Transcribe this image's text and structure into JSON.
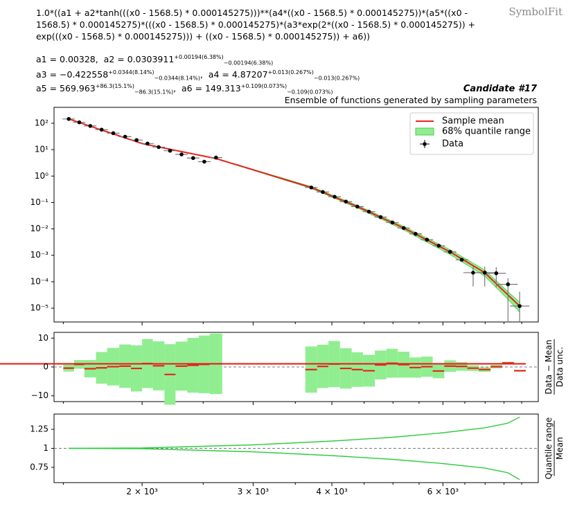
{
  "watermark": "SymbolFit",
  "formula": "1.0*((a1 + a2*tanh(((x0 - 1568.5) * 0.000145275)))**(a4*((x0 - 1568.5) * 0.000145275))*(a5*((x0 - 1568.5) * 0.000145275)*(((x0 - 1568.5) * 0.000145275)*(a3*exp(2*((x0 - 1568.5) * 0.000145275)) + exp(((x0 - 1568.5) * 0.000145275))) + ((x0 - 1568.5) * 0.000145275)) + a6))",
  "params": {
    "line1": {
      "a1": "a1 = 0.00328,",
      "a2": "a2 = 0.0303911",
      "a2_up": "+0.00194(6.38%)",
      "a2_dn": "−0.00194(6.38%)"
    },
    "line2": {
      "a3": "a3 = −0.422558",
      "a3_up": "+0.0344(8.14%)",
      "a3_dn": "−0.0344(8.14%)",
      "a4": "a4 = 4.87207",
      "a4_up": "+0.013(0.267%)",
      "a4_dn": "−0.013(0.267%)"
    },
    "line3": {
      "a5": "a5 = 569.963",
      "a5_up": "+86.3(15.1%)",
      "a5_dn": "−86.3(15.1%)",
      "a6": "a6 = 149.313",
      "a6_up": "+0.109(0.073%)",
      "a6_dn": "−0.109(0.073%)"
    }
  },
  "candidate": "Candidate #17",
  "subtitle": "Ensemble of functions generated by sampling parameters",
  "legend": {
    "mean": "Sample mean",
    "band": "68% quantile range",
    "data": "Data"
  },
  "colors": {
    "mean": "#e8231c",
    "band": "#90ee90",
    "green_line": "#2ecc40",
    "data": "#000000"
  },
  "chart_data": {
    "type": "line",
    "x_scale": "log",
    "xlim": [
      1450,
      8500
    ],
    "x_tick_labels": [
      "2 × 10³",
      "3 × 10³",
      "4 × 10³",
      "6 × 10³"
    ],
    "top": {
      "y_scale": "log",
      "ylim": [
        3e-06,
        400
      ],
      "y_tick_labels": [
        "10²",
        "10¹",
        "10⁰",
        "10⁻¹",
        "10⁻²",
        "10⁻³",
        "10⁻⁴",
        "10⁻⁵"
      ],
      "data_x": [
        1530,
        1590,
        1655,
        1725,
        1800,
        1880,
        1960,
        2040,
        2125,
        2215,
        2310,
        2410,
        2510,
        2620,
        3710,
        3870,
        4040,
        4210,
        4390,
        4580,
        4780,
        4990,
        5200,
        5430,
        5660,
        5910,
        6160,
        6430,
        6700,
        6990,
        7290,
        7610,
        7940
      ],
      "data_y": [
        145,
        108,
        79,
        57,
        42,
        31,
        23,
        17,
        12.5,
        9.1,
        6.6,
        4.8,
        3.5,
        5.0,
        0.37,
        0.25,
        0.165,
        0.108,
        0.07,
        0.045,
        0.028,
        0.0175,
        0.0108,
        0.0065,
        0.0039,
        0.0023,
        0.00135,
        0.00068,
        0.00022,
        0.00022,
        0.00021,
        8e-05,
        1.2e-05
      ]
    },
    "middle": {
      "ylabel": "Data − Mean / Data unc.",
      "ylim": [
        -12,
        12
      ],
      "y_tick_labels": [
        "10",
        "0",
        "−10"
      ],
      "bins": [
        1500,
        1560,
        1620,
        1690,
        1760,
        1840,
        1920,
        2000,
        2080,
        2170,
        2260,
        2360,
        2460,
        2560,
        2680,
        3630,
        3790,
        3950,
        4120,
        4300,
        4480,
        4680,
        4880,
        5090,
        5310,
        5540,
        5780,
        6030,
        6290,
        6560,
        6840,
        7140,
        7450,
        7780,
        8120
      ],
      "residual": [
        -0.4,
        0.9,
        -0.6,
        -0.3,
        0.1,
        0.3,
        -0.5,
        1.2,
        0.4,
        -2.6,
        0.3,
        0.6,
        0.9,
        1.1,
        null,
        -0.9,
        0.2,
        1.0,
        -0.5,
        -0.9,
        -1.3,
        0.7,
        1.3,
        0.8,
        -0.2,
        0.1,
        -1.4,
        0.3,
        0.2,
        -0.4,
        -0.9,
        0.1,
        1.4,
        -1.3,
        1.1
      ],
      "band_half": [
        1.2,
        1.5,
        3.0,
        5.5,
        6.5,
        7.5,
        8.0,
        8.5,
        8.5,
        10.5,
        8.5,
        9.5,
        10.0,
        10.5,
        null,
        8.0,
        7.5,
        8.0,
        7.0,
        6.0,
        5.5,
        5.0,
        5.0,
        4.5,
        3.5,
        3.5,
        2.5,
        2.0,
        1.5,
        1.0,
        0.8,
        0.6,
        0.4,
        0.3,
        0.2
      ]
    },
    "bottom": {
      "ylabel": "Quantile range / Mean",
      "ylim": [
        0.55,
        1.45
      ],
      "y_tick_labels": [
        "1.25",
        "1",
        "0.75"
      ],
      "upper_x": [
        1530,
        2000,
        3000,
        4000,
        5000,
        6000,
        7000,
        7600,
        7940
      ],
      "upper_y": [
        1.0,
        1.005,
        1.045,
        1.095,
        1.145,
        1.205,
        1.27,
        1.33,
        1.41
      ],
      "lower_y": [
        1.0,
        0.995,
        0.955,
        0.905,
        0.855,
        0.8,
        0.74,
        0.68,
        0.59
      ]
    }
  }
}
